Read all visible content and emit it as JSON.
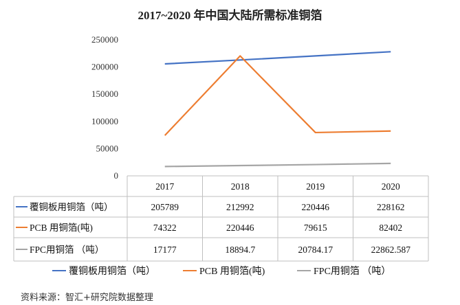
{
  "chart_data": {
    "type": "line",
    "title": "2017~2020 年中国大陆所需标准铜箔",
    "categories": [
      "2017",
      "2018",
      "2019",
      "2020"
    ],
    "ylim": [
      0,
      250000
    ],
    "yticks": [
      "250000",
      "200000",
      "150000",
      "100000",
      "50000",
      "0"
    ],
    "series": [
      {
        "name": "覆铜板用铜箔（吨）",
        "color": "#4472C4",
        "values": [
          205789,
          212992,
          220446,
          228162
        ],
        "labels": [
          "205789",
          "212992",
          "220446",
          "228162"
        ]
      },
      {
        "name": "PCB 用铜箔(吨)",
        "color": "#ED7D31",
        "values": [
          74322,
          220446,
          79615,
          82402
        ],
        "labels": [
          "74322",
          "220446",
          "79615",
          "82402"
        ]
      },
      {
        "name": "FPC用铜箔 （吨）",
        "color": "#A5A5A5",
        "values": [
          17177,
          18894.7,
          20784.17,
          22862.587
        ],
        "labels": [
          "17177",
          "18894.7",
          "20784.17",
          "22862.587"
        ]
      }
    ],
    "grid": false,
    "legend": "bottom",
    "data_table": true
  },
  "source_text": "资料来源：智汇+研究院数据整理"
}
